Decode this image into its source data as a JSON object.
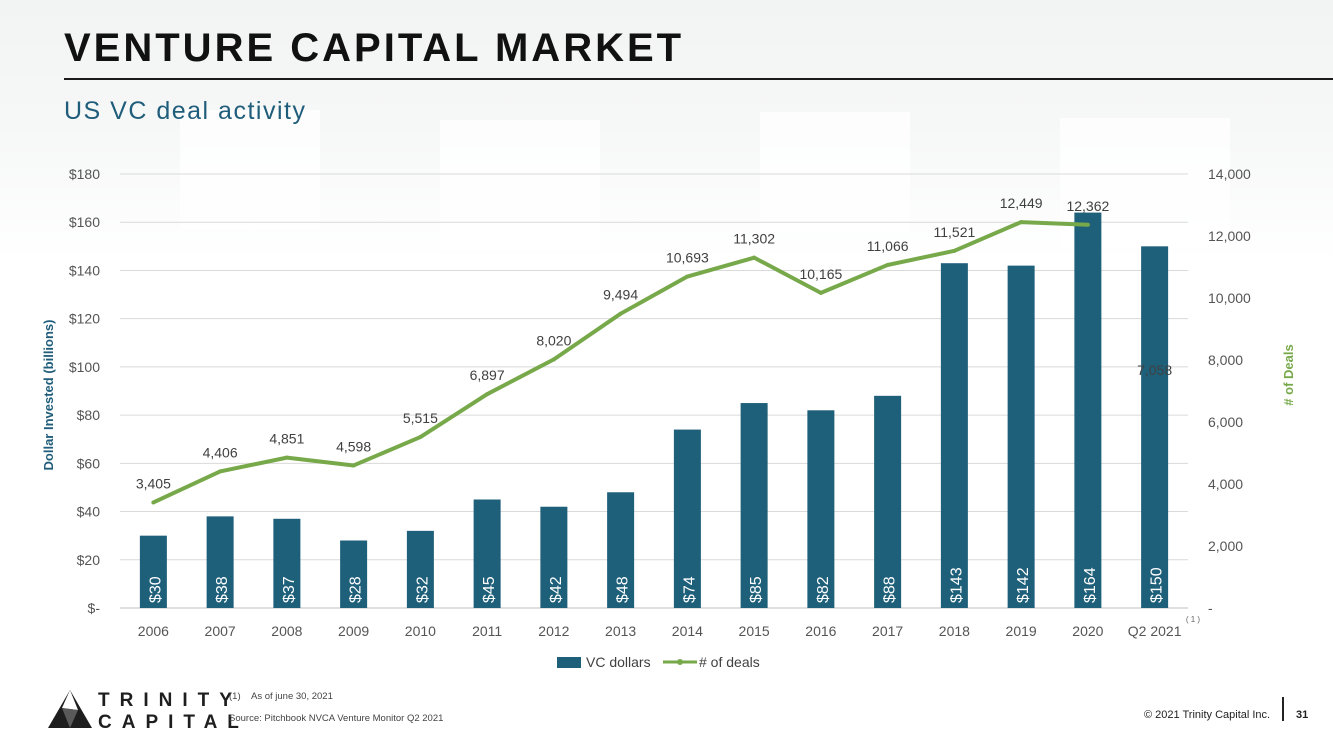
{
  "header": {
    "title": "VENTURE CAPITAL MARKET",
    "subtitle": "US VC deal activity"
  },
  "chart_data": {
    "type": "bar",
    "title": "US VC deal activity",
    "categories": [
      "2006",
      "2007",
      "2008",
      "2009",
      "2010",
      "2011",
      "2012",
      "2013",
      "2014",
      "2015",
      "2016",
      "2017",
      "2018",
      "2019",
      "2020",
      "Q2 2021"
    ],
    "series": [
      {
        "name": "VC dollars",
        "type": "bar",
        "axis": "left",
        "color": "#1e5f7a",
        "values": [
          30,
          38,
          37,
          28,
          32,
          45,
          42,
          48,
          74,
          85,
          82,
          88,
          143,
          142,
          164,
          150
        ],
        "labels": [
          "$30",
          "$38",
          "$37",
          "$28",
          "$32",
          "$45",
          "$42",
          "$48",
          "$74",
          "$85",
          "$82",
          "$88",
          "$143",
          "$142",
          "$164",
          "$150"
        ]
      },
      {
        "name": "# of deals",
        "type": "line",
        "axis": "right",
        "color": "#77a94a",
        "values": [
          3405,
          4406,
          4851,
          4598,
          5515,
          6897,
          8020,
          9494,
          10693,
          11302,
          10165,
          11066,
          11521,
          12449,
          12362,
          7058
        ],
        "labels": [
          "3,405",
          "4,406",
          "4,851",
          "4,598",
          "5,515",
          "6,897",
          "8,020",
          "9,494",
          "10,693",
          "11,302",
          "10,165",
          "11,066",
          "11,521",
          "12,449",
          "12,362",
          "7,058"
        ]
      }
    ],
    "ylabel": "Dollar Invested (billions)",
    "y2label": "# of Deals",
    "ylim": [
      0,
      180
    ],
    "y2lim": [
      0,
      14000
    ],
    "yticks": [
      "$-",
      "$20",
      "$40",
      "$60",
      "$80",
      "$100",
      "$120",
      "$140",
      "$160",
      "$180"
    ],
    "y2ticks": [
      "-",
      "2,000",
      "4,000",
      "6,000",
      "8,000",
      "10,000",
      "12,000",
      "14,000"
    ],
    "grid": true,
    "legend": "bottom",
    "category_note": "( 1 )"
  },
  "footer": {
    "logo_line1": "TRINITY",
    "logo_line2": "CAPITAL",
    "footnote_num": "(1)",
    "footnote_text": "As of june 30, 2021",
    "source": "Source: Pitchbook NVCA Venture Monitor Q2 2021",
    "copyright": "© 2021 Trinity Capital Inc.",
    "page": "31"
  }
}
